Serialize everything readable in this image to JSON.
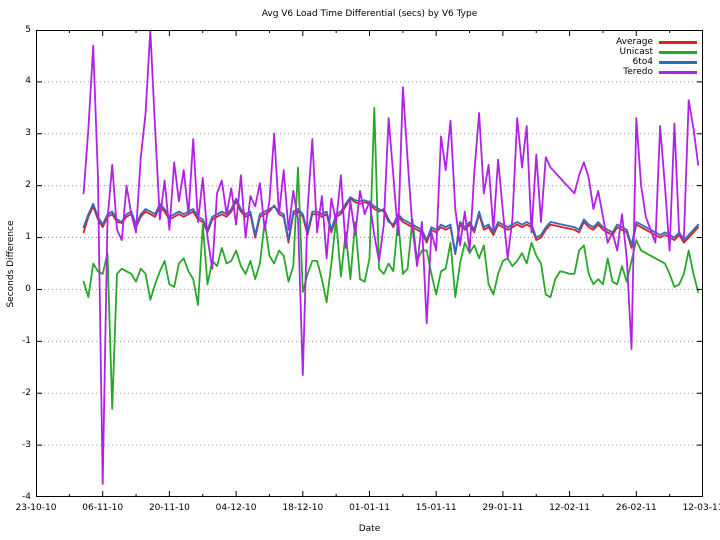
{
  "title": "Avg V6 Load Time Differential (secs) by V6 Type",
  "x_axis": {
    "label": "Date",
    "range_days": [
      0,
      140
    ],
    "tick_days": [
      0,
      14,
      28,
      42,
      56,
      70,
      84,
      98,
      112,
      126,
      140
    ],
    "tick_labels": [
      "23-10-10",
      "06-11-10",
      "20-11-10",
      "04-12-10",
      "18-12-10",
      "01-01-11",
      "15-01-11",
      "29-01-11",
      "12-02-11",
      "26-02-11",
      "12-03-11"
    ],
    "minor_tick_days": [
      7,
      21,
      35,
      49,
      63,
      77,
      91,
      105,
      119,
      133
    ]
  },
  "y_axis": {
    "label": "Seconds Difference",
    "range": [
      -4,
      5
    ],
    "ticks": [
      -4,
      -3,
      -2,
      -1,
      0,
      1,
      2,
      3,
      4,
      5
    ],
    "grid": "horizontal-dotted"
  },
  "legend": {
    "position": "top-right",
    "items": [
      {
        "label": "Average",
        "color": "#dd2222"
      },
      {
        "label": "Unicast",
        "color": "#28a828"
      },
      {
        "label": "6to4",
        "color": "#2d6bc4"
      },
      {
        "label": "Teredo",
        "color": "#b122e8"
      }
    ]
  },
  "chart_data": {
    "type": "line",
    "title": "Avg V6 Load Time Differential (secs) by V6 Type",
    "xlabel": "Date",
    "ylabel": "Seconds Difference",
    "ylim": [
      -4,
      5
    ],
    "grid": "horizontal-dotted",
    "legend_position": "top-right",
    "x_unit": "days since 23-10-10 (daily samples)",
    "x_start_day": 10,
    "x_step": 1,
    "x_first_date": "02-11-10",
    "x_last_date": "11-03-11",
    "series": [
      {
        "name": "Average",
        "color": "#dd2222",
        "values": [
          1.1,
          1.4,
          1.6,
          1.35,
          1.2,
          1.4,
          1.45,
          1.3,
          1.28,
          1.4,
          1.45,
          1.2,
          1.4,
          1.5,
          1.45,
          1.4,
          1.6,
          1.5,
          1.35,
          1.4,
          1.45,
          1.4,
          1.45,
          1.5,
          1.35,
          1.3,
          1.1,
          1.35,
          1.4,
          1.45,
          1.4,
          1.5,
          1.7,
          1.5,
          1.4,
          1.45,
          1.0,
          1.4,
          1.45,
          1.5,
          1.62,
          1.45,
          1.4,
          0.9,
          1.45,
          1.5,
          1.4,
          1.05,
          1.45,
          1.45,
          1.4,
          1.45,
          1.1,
          1.4,
          1.45,
          1.6,
          1.75,
          1.68,
          1.65,
          1.68,
          1.65,
          1.55,
          1.5,
          1.55,
          1.35,
          1.2,
          1.4,
          1.3,
          1.25,
          1.2,
          1.15,
          1.1,
          0.9,
          1.15,
          1.1,
          1.2,
          1.15,
          1.2,
          0.68,
          1.25,
          1.15,
          1.25,
          1.1,
          1.45,
          1.15,
          1.2,
          1.05,
          1.25,
          1.2,
          1.15,
          1.2,
          1.25,
          1.2,
          1.25,
          1.2,
          0.95,
          1.0,
          1.15,
          1.25,
          1.23,
          1.21,
          1.19,
          1.17,
          1.15,
          1.1,
          1.3,
          1.2,
          1.15,
          1.25,
          1.15,
          1.1,
          1.05,
          1.2,
          1.15,
          1.1,
          0.8,
          1.25,
          1.2,
          1.15,
          1.1,
          1.05,
          1.0,
          1.05,
          1.0,
          0.95,
          1.05,
          0.9,
          1.0,
          1.1,
          1.2
        ]
      },
      {
        "name": "Unicast",
        "color": "#28a828",
        "values": [
          0.15,
          -0.15,
          0.5,
          0.35,
          0.3,
          0.7,
          -2.3,
          0.3,
          0.4,
          0.35,
          0.3,
          0.15,
          0.4,
          0.3,
          -0.2,
          0.1,
          0.35,
          0.55,
          0.1,
          0.05,
          0.5,
          0.6,
          0.35,
          0.2,
          -0.3,
          1.25,
          0.1,
          0.55,
          0.45,
          0.8,
          0.5,
          0.55,
          0.75,
          0.45,
          0.3,
          0.55,
          0.2,
          0.5,
          1.3,
          0.65,
          0.5,
          0.75,
          0.65,
          0.15,
          0.45,
          2.35,
          -0.05,
          0.3,
          0.55,
          0.55,
          0.2,
          -0.25,
          0.5,
          1.35,
          0.25,
          1.1,
          0.2,
          1.3,
          0.2,
          0.15,
          0.6,
          3.5,
          0.4,
          0.3,
          0.5,
          0.35,
          1.35,
          0.3,
          0.4,
          1.35,
          0.55,
          0.75,
          0.75,
          0.3,
          -0.1,
          0.35,
          0.4,
          0.9,
          -0.15,
          0.5,
          0.9,
          0.7,
          0.85,
          0.6,
          0.85,
          0.1,
          -0.1,
          0.3,
          0.55,
          0.6,
          0.45,
          0.55,
          0.7,
          0.5,
          0.9,
          0.65,
          0.5,
          -0.1,
          -0.15,
          0.2,
          0.35,
          0.33,
          0.3,
          0.3,
          0.75,
          0.85,
          0.3,
          0.1,
          0.2,
          0.1,
          0.6,
          0.15,
          0.1,
          0.45,
          0.15,
          0.55,
          0.95,
          0.75,
          0.7,
          0.65,
          0.6,
          0.55,
          0.5,
          0.3,
          0.05,
          0.1,
          0.3,
          0.75,
          0.3,
          -0.05
        ]
      },
      {
        "name": "6to4",
        "color": "#2d6bc4",
        "values": [
          1.2,
          1.45,
          1.65,
          1.4,
          1.25,
          1.45,
          1.5,
          1.35,
          1.3,
          1.45,
          1.5,
          1.25,
          1.45,
          1.55,
          1.5,
          1.45,
          1.65,
          1.55,
          1.4,
          1.45,
          1.5,
          1.45,
          1.5,
          1.55,
          1.4,
          1.35,
          1.15,
          1.4,
          1.45,
          1.5,
          1.45,
          1.55,
          1.75,
          1.55,
          1.45,
          1.5,
          1.05,
          1.45,
          1.5,
          1.55,
          1.6,
          1.5,
          1.45,
          0.95,
          1.5,
          1.55,
          1.45,
          1.1,
          1.5,
          1.5,
          1.45,
          1.5,
          1.15,
          1.45,
          1.5,
          1.65,
          1.78,
          1.72,
          1.7,
          1.72,
          1.68,
          1.6,
          1.55,
          1.5,
          1.3,
          1.25,
          1.45,
          1.35,
          1.3,
          1.25,
          1.2,
          1.15,
          0.95,
          1.2,
          1.15,
          1.25,
          1.2,
          1.25,
          0.7,
          1.3,
          1.2,
          1.3,
          1.15,
          1.5,
          1.2,
          1.25,
          1.1,
          1.3,
          1.25,
          1.2,
          1.25,
          1.3,
          1.25,
          1.3,
          1.25,
          1.0,
          1.05,
          1.2,
          1.3,
          1.28,
          1.26,
          1.24,
          1.22,
          1.2,
          1.15,
          1.35,
          1.25,
          1.2,
          1.3,
          1.2,
          1.15,
          1.1,
          1.25,
          1.2,
          1.15,
          0.85,
          1.3,
          1.25,
          1.2,
          1.15,
          1.1,
          1.05,
          1.1,
          1.05,
          1.0,
          1.1,
          0.95,
          1.05,
          1.15,
          1.25
        ]
      },
      {
        "name": "Teredo",
        "color": "#b122e8",
        "values": [
          1.85,
          3.1,
          4.7,
          2.2,
          -3.75,
          1.35,
          2.4,
          1.15,
          0.95,
          2.0,
          1.45,
          1.1,
          2.55,
          3.4,
          5.0,
          3.1,
          1.35,
          2.1,
          1.15,
          2.45,
          1.7,
          2.3,
          1.45,
          2.9,
          1.3,
          2.15,
          1.0,
          0.4,
          1.85,
          2.1,
          1.45,
          1.95,
          1.25,
          2.2,
          1.0,
          1.8,
          1.6,
          2.05,
          1.15,
          1.7,
          3.0,
          1.45,
          2.3,
          1.15,
          1.9,
          1.35,
          -1.65,
          1.55,
          2.9,
          1.1,
          1.8,
          0.6,
          1.75,
          1.3,
          2.2,
          0.8,
          1.7,
          1.05,
          1.9,
          1.45,
          1.7,
          1.05,
          0.55,
          1.25,
          3.3,
          2.2,
          1.05,
          3.9,
          2.5,
          1.2,
          0.45,
          1.3,
          -0.65,
          1.1,
          0.75,
          2.95,
          2.3,
          3.25,
          1.55,
          0.85,
          1.5,
          0.75,
          2.25,
          3.4,
          1.85,
          2.4,
          1.15,
          2.5,
          1.5,
          0.6,
          1.35,
          3.3,
          2.35,
          3.15,
          1.1,
          2.6,
          1.3,
          2.55,
          2.35,
          2.25,
          2.15,
          2.05,
          1.95,
          1.85,
          2.2,
          2.45,
          2.15,
          1.55,
          1.9,
          1.4,
          0.9,
          1.1,
          0.75,
          1.45,
          0.6,
          -1.15,
          3.3,
          2.0,
          1.4,
          1.15,
          0.9,
          3.15,
          2.0,
          0.75,
          3.2,
          1.05,
          1.0,
          3.65,
          3.1,
          2.4
        ]
      }
    ]
  }
}
